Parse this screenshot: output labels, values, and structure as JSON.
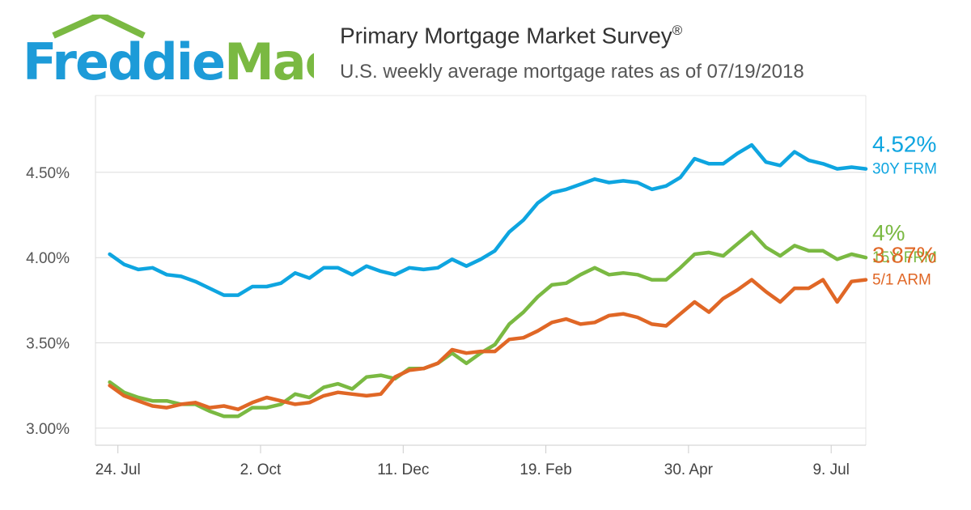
{
  "logo": {
    "text": "FreddieMac",
    "blue": "#1d9bd8",
    "green": "#7ab942"
  },
  "header": {
    "title": "Primary Mortgage Market Survey",
    "title_mark": "®",
    "subtitle": "U.S. weekly average mortgage rates as of 07/19/2018"
  },
  "chart_data": {
    "type": "line",
    "title": "Primary Mortgage Market Survey®",
    "subtitle": "U.S. weekly average mortgage rates as of 07/19/2018",
    "xlabel": "",
    "ylabel": "",
    "x_start": "2017-07-20",
    "x_step_days": 7,
    "x_range": [
      "2017-07-13",
      "2018-07-26"
    ],
    "ylim": [
      2.9,
      4.95
    ],
    "y_ticks": [
      "3.00%",
      "3.50%",
      "4.00%",
      "4.50%"
    ],
    "y_tick_values": [
      3.0,
      3.5,
      4.0,
      4.5
    ],
    "x_ticks": [
      "24. Jul",
      "2. Oct",
      "11. Dec",
      "19. Feb",
      "30. Apr",
      "9. Jul"
    ],
    "x_tick_dates": [
      "2017-07-24",
      "2017-10-02",
      "2017-12-11",
      "2018-02-19",
      "2018-04-30",
      "2018-07-09"
    ],
    "grid": true,
    "series": [
      {
        "name": "30Y FRM",
        "color": "#0ea5e0",
        "end_label": "4.52%",
        "values": [
          4.02,
          3.96,
          3.93,
          3.94,
          3.9,
          3.89,
          3.86,
          3.82,
          3.78,
          3.78,
          3.83,
          3.83,
          3.85,
          3.91,
          3.88,
          3.94,
          3.94,
          3.9,
          3.95,
          3.92,
          3.9,
          3.94,
          3.93,
          3.94,
          3.99,
          3.95,
          3.99,
          4.04,
          4.15,
          4.22,
          4.32,
          4.38,
          4.4,
          4.43,
          4.46,
          4.44,
          4.45,
          4.44,
          4.4,
          4.42,
          4.47,
          4.58,
          4.55,
          4.55,
          4.61,
          4.66,
          4.56,
          4.54,
          4.62,
          4.57,
          4.55,
          4.52,
          4.53,
          4.52
        ]
      },
      {
        "name": "15Y FRM",
        "color": "#7ab942",
        "end_label": "4%",
        "values": [
          3.27,
          3.21,
          3.18,
          3.16,
          3.16,
          3.14,
          3.14,
          3.1,
          3.07,
          3.07,
          3.12,
          3.12,
          3.14,
          3.2,
          3.18,
          3.24,
          3.26,
          3.23,
          3.3,
          3.31,
          3.29,
          3.35,
          3.35,
          3.38,
          3.44,
          3.38,
          3.44,
          3.49,
          3.61,
          3.68,
          3.77,
          3.84,
          3.85,
          3.9,
          3.94,
          3.9,
          3.91,
          3.9,
          3.87,
          3.87,
          3.94,
          4.02,
          4.03,
          4.01,
          4.08,
          4.15,
          4.06,
          4.01,
          4.07,
          4.04,
          4.04,
          3.99,
          4.02,
          4.0
        ]
      },
      {
        "name": "5/1 ARM",
        "color": "#e06726",
        "end_label": "3.87%",
        "values": [
          3.25,
          3.19,
          3.16,
          3.13,
          3.12,
          3.14,
          3.15,
          3.12,
          3.13,
          3.11,
          3.15,
          3.18,
          3.16,
          3.14,
          3.15,
          3.19,
          3.21,
          3.2,
          3.19,
          3.2,
          3.3,
          3.34,
          3.35,
          3.38,
          3.46,
          3.44,
          3.45,
          3.45,
          3.52,
          3.53,
          3.57,
          3.62,
          3.64,
          3.61,
          3.62,
          3.66,
          3.67,
          3.65,
          3.61,
          3.6,
          3.67,
          3.74,
          3.68,
          3.76,
          3.81,
          3.87,
          3.8,
          3.74,
          3.82,
          3.82,
          3.87,
          3.74,
          3.86,
          3.87
        ]
      }
    ]
  }
}
